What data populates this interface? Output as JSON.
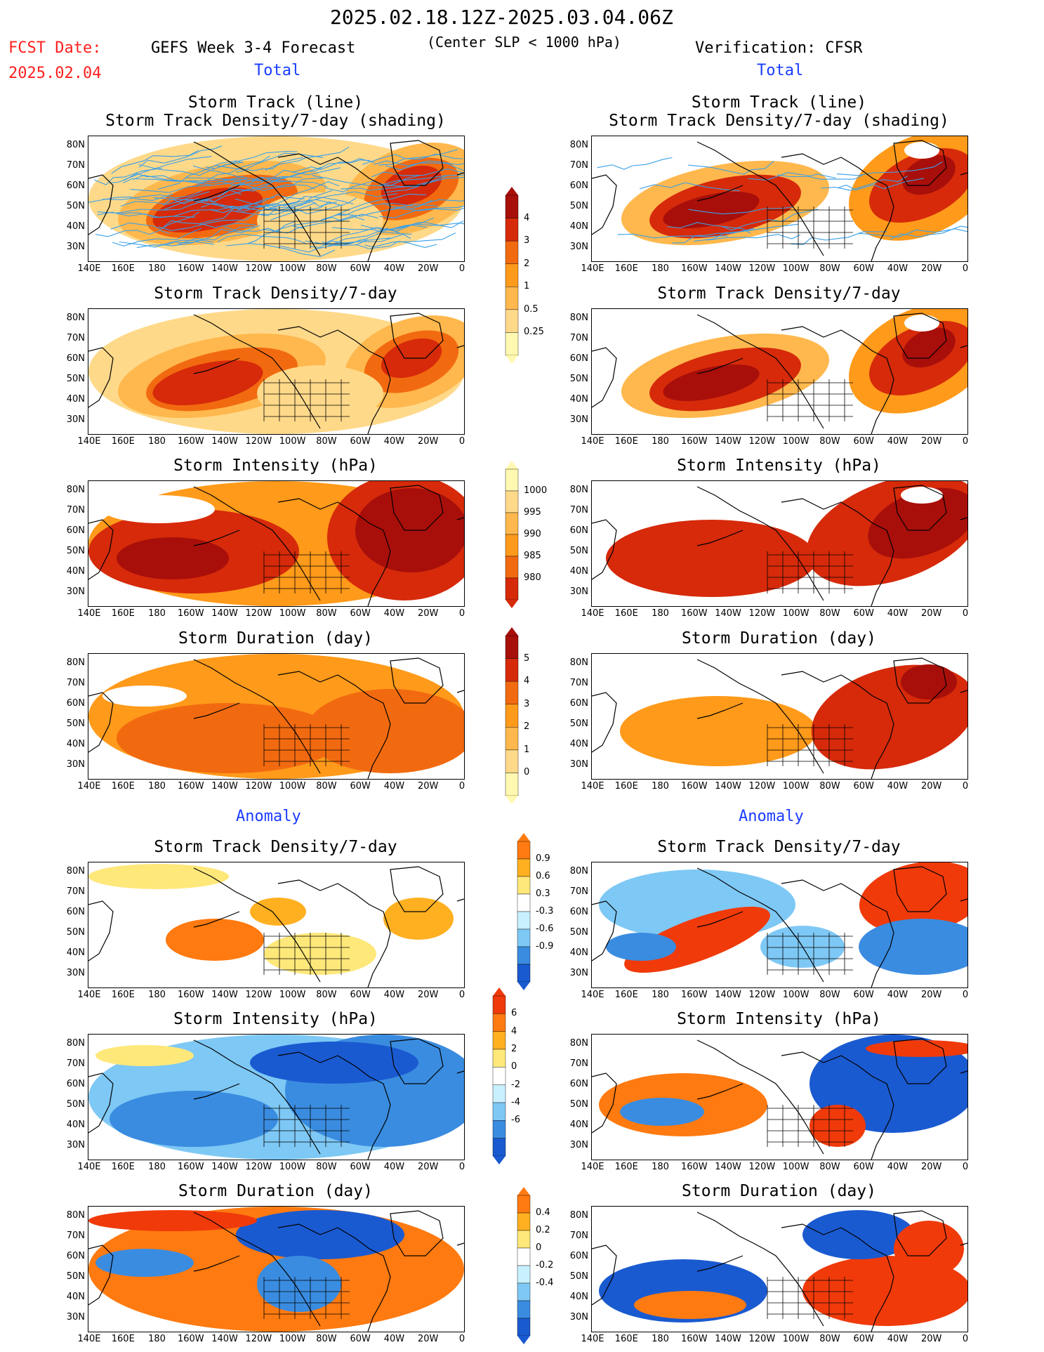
{
  "header": {
    "date_range": "2025.02.18.12Z-2025.03.04.06Z",
    "fcst_label": "FCST Date:",
    "fcst_date": "2025.02.04",
    "left_title": "GEFS Week 3-4 Forecast",
    "criterion": "(Center SLP < 1000 hPa)",
    "right_title": "Verification: CFSR",
    "section_total": "Total",
    "section_anomaly": "Anomaly"
  },
  "panel_titles": {
    "track_line": "Storm Track (line)",
    "track_shading": "Storm Track Density/7-day (shading)",
    "density": "Storm Track Density/7-day",
    "intensity": "Storm Intensity (hPa)",
    "duration": "Storm Duration (day)"
  },
  "axes": {
    "lat_labels": [
      "80N",
      "70N",
      "60N",
      "50N",
      "40N",
      "30N"
    ],
    "lon_labels": [
      "140E",
      "160E",
      "180",
      "160W",
      "140W",
      "120W",
      "100W",
      "80W",
      "60W",
      "40W",
      "20W",
      "0"
    ]
  },
  "colorbars": {
    "density_total": [
      "4",
      "3",
      "2",
      "1",
      "0.5",
      "0.25"
    ],
    "intensity_total": [
      "1000",
      "995",
      "990",
      "985",
      "980"
    ],
    "duration_total": [
      "5",
      "4",
      "3",
      "2",
      "1",
      "0"
    ],
    "density_anom": [
      "0.9",
      "0.6",
      "0.3",
      "-0.3",
      "-0.6",
      "-0.9"
    ],
    "intensity_anom": [
      "6",
      "4",
      "2",
      "0",
      "-2",
      "-4",
      "-6"
    ],
    "duration_anom": [
      "0.4",
      "0.2",
      "0",
      "-0.2",
      "-0.4"
    ]
  },
  "colors": {
    "total_scale": [
      "#fff8b0",
      "#ffd98a",
      "#ffb84d",
      "#ff9a1a",
      "#f26a10",
      "#d62a0a",
      "#a80f0a"
    ],
    "anom_warm": [
      "#ffe87a",
      "#ffb020",
      "#ff7a10",
      "#f03a0a"
    ],
    "anom_cool": [
      "#c8f0ff",
      "#7ec8f5",
      "#3a8ce0",
      "#1a5ad0"
    ],
    "track_line": "#3aa0e8",
    "title_red": "#ff2020",
    "section_blue": "#1a3cff"
  }
}
